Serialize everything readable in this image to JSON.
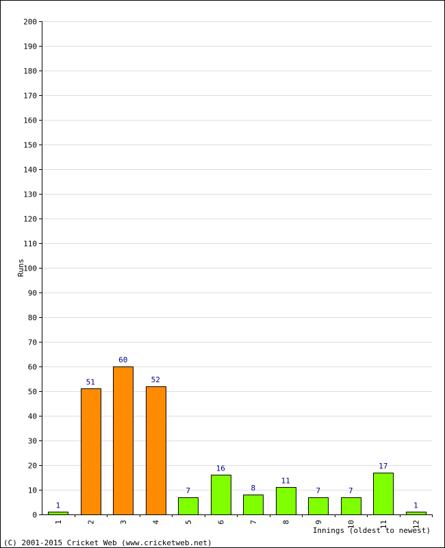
{
  "chart_data": {
    "type": "bar",
    "title": "",
    "xlabel": "Innings (oldest to newest)",
    "ylabel": "Runs",
    "ylim": [
      0,
      200
    ],
    "ytick_step": 10,
    "grid": true,
    "categories": [
      "1",
      "2",
      "3",
      "4",
      "5",
      "6",
      "7",
      "8",
      "9",
      "10",
      "11",
      "12"
    ],
    "values": [
      1,
      51,
      60,
      52,
      7,
      16,
      8,
      11,
      7,
      7,
      17,
      1
    ],
    "bar_colors": [
      "#80ff00",
      "#ff8c00",
      "#ff8c00",
      "#ff8c00",
      "#80ff00",
      "#80ff00",
      "#80ff00",
      "#80ff00",
      "#80ff00",
      "#80ff00",
      "#80ff00",
      "#80ff00"
    ],
    "data_label_color": "#000080"
  },
  "footer": "(C) 2001-2015 Cricket Web (www.cricketweb.net)"
}
